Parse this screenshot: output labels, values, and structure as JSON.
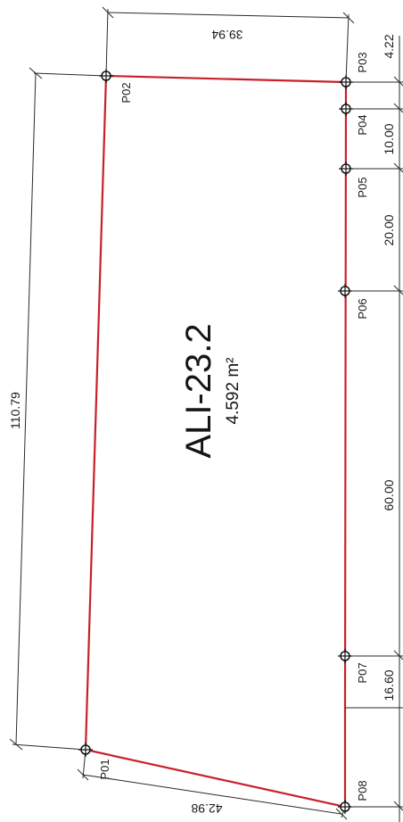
{
  "parcel": {
    "name": "ALI-23.2",
    "area": "4.592 m²"
  },
  "points": [
    {
      "id": "P01",
      "label": "P01"
    },
    {
      "id": "P02",
      "label": "P02"
    },
    {
      "id": "P03",
      "label": "P03"
    },
    {
      "id": "P04",
      "label": "P04"
    },
    {
      "id": "P05",
      "label": "P05"
    },
    {
      "id": "P06",
      "label": "P06"
    },
    {
      "id": "P07",
      "label": "P07"
    },
    {
      "id": "P08",
      "label": "P08"
    }
  ],
  "dimensions": {
    "top": "39.94",
    "bottom": "42.98",
    "left": "110.79",
    "right": [
      "4.22",
      "10.00",
      "20.00",
      "60.00",
      "16.60"
    ]
  },
  "colors": {
    "boundary": "#c8202a",
    "lines": "#2a2a2a"
  }
}
